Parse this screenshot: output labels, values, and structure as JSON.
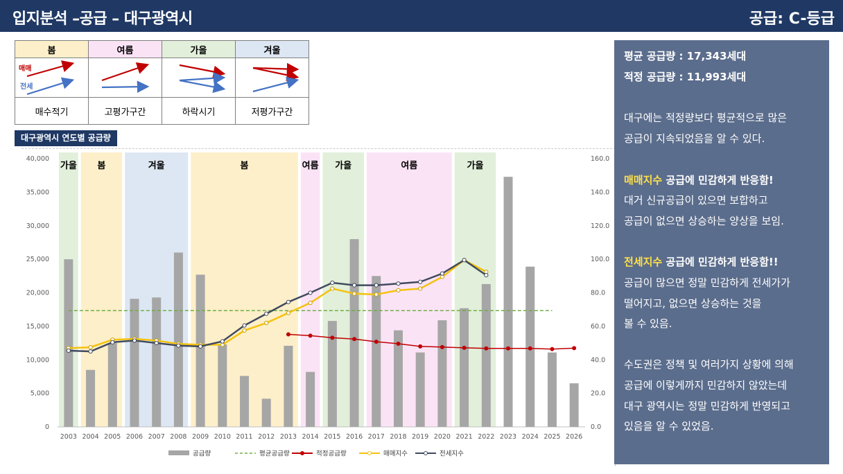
{
  "header": {
    "title": "입지분석 –공급 – 대구광역시",
    "grade": "공급: C-등급"
  },
  "season_table": {
    "seasons": [
      {
        "name": "봄",
        "color": "#fdefc9",
        "label": "매수적기"
      },
      {
        "name": "여름",
        "color": "#fbe3f6",
        "label": "고평가구간"
      },
      {
        "name": "가을",
        "color": "#e2efda",
        "label": "하락시기"
      },
      {
        "name": "겨울",
        "color": "#dde7f3",
        "label": "저평가구간"
      }
    ],
    "legend_sale": "매매",
    "legend_jeonse": "전세",
    "colors": {
      "sale": "#c00000",
      "jeonse": "#4472c4"
    }
  },
  "section_label": "대구광역시 연도별 공급량",
  "chart_data": {
    "type": "bar",
    "categories": [
      "2003",
      "2004",
      "2005",
      "2006",
      "2007",
      "2008",
      "2009",
      "2010",
      "2011",
      "2012",
      "2013",
      "2014",
      "2015",
      "2016",
      "2017",
      "2018",
      "2019",
      "2020",
      "2021",
      "2022",
      "2023",
      "2024",
      "2025",
      "2026"
    ],
    "ylim_left": [
      0,
      40000
    ],
    "yticks_left": [
      "0",
      "5,000",
      "10,000",
      "15,000",
      "20,000",
      "25,000",
      "30,000",
      "35,000",
      "40,000"
    ],
    "ylim_right": [
      0,
      160
    ],
    "yticks_right": [
      "0.0",
      "20.0",
      "40.0",
      "60.0",
      "80.0",
      "100.0",
      "120.0",
      "140.0",
      "160.0"
    ],
    "bands": [
      {
        "label": "가을",
        "color": "#e2efda",
        "from": 0,
        "to": 0
      },
      {
        "label": "봄",
        "color": "#fdefc9",
        "from": 1,
        "to": 2
      },
      {
        "label": "겨울",
        "color": "#dde7f3",
        "from": 3,
        "to": 5
      },
      {
        "label": "봄",
        "color": "#fdefc9",
        "from": 6,
        "to": 10
      },
      {
        "label": "여름",
        "color": "#fbe3f6",
        "from": 11,
        "to": 11
      },
      {
        "label": "가을",
        "color": "#e2efda",
        "from": 12,
        "to": 13
      },
      {
        "label": "여름",
        "color": "#fbe3f6",
        "from": 14,
        "to": 17
      },
      {
        "label": "가을",
        "color": "#e2efda",
        "from": 18,
        "to": 19
      }
    ],
    "series": [
      {
        "name": "공급량",
        "type": "bar",
        "axis": "left",
        "color": "#a6a6a6",
        "values": [
          25000,
          8500,
          12500,
          19100,
          19300,
          26000,
          22700,
          12300,
          7600,
          4200,
          12100,
          8200,
          15800,
          28000,
          22500,
          14400,
          11100,
          15900,
          17700,
          21300,
          37300,
          23900,
          11100,
          6500
        ]
      },
      {
        "name": "평균공급량",
        "type": "dashed",
        "axis": "left",
        "color": "#70ad47",
        "value": 17343,
        "from": 0,
        "to": 22
      },
      {
        "name": "적정공급량",
        "type": "line",
        "axis": "left",
        "color": "#c00000",
        "values": [
          null,
          null,
          null,
          null,
          null,
          null,
          null,
          null,
          null,
          null,
          13800,
          13600,
          13300,
          13100,
          12700,
          12400,
          12000,
          11900,
          11800,
          11700,
          11700,
          11700,
          11600,
          11750
        ]
      },
      {
        "name": "매매지수",
        "type": "line",
        "axis": "right",
        "color": "#f4c20d",
        "values": [
          47,
          47.5,
          52,
          52.5,
          51.5,
          49.5,
          49,
          49,
          57.5,
          62,
          68,
          74,
          82.5,
          79.5,
          79,
          81.5,
          82.5,
          89.5,
          99.5,
          92.5,
          null,
          null,
          null,
          null
        ]
      },
      {
        "name": "전세지수",
        "type": "line",
        "axis": "right",
        "color": "#404a5e",
        "values": [
          45.5,
          45,
          50.5,
          51.5,
          50,
          48.5,
          48,
          51,
          60.5,
          67.5,
          74.5,
          80,
          86,
          84.5,
          84.5,
          85.5,
          86.5,
          91.5,
          99.5,
          90.5,
          null,
          null,
          null,
          null
        ]
      }
    ]
  },
  "panel": {
    "avg_supply": "평균 공급량 : 17,343세대",
    "proper_supply": "적정 공급량 : 11,993세대",
    "p1_l1": "대구에는 적정량보다 평균적으로 많은",
    "p1_l2": "공급이 지속되었음을 알 수 있다.",
    "p2_hl": "매매지수",
    "p2_rest": " 공급에 민감하게 반응함!",
    "p2_l2": "대거 신규공급이 있으면 보합하고",
    "p2_l3": "공급이 없으면 상승하는 양상을 보임.",
    "p3_hl": "전세지수",
    "p3_rest": " 공급에 민감하게 반응함!!",
    "p3_l2": "공급이 많으면 정말 민감하게 전세가가",
    "p3_l3": "떨어지고, 없으면 상승하는 것을",
    "p3_l4": "볼 수 있음.",
    "p4_l1": " 수도권은 정책 및 여러가지 상황에 의해",
    "p4_l2": "공급에 이렇게까지 민감하지 않았는데",
    "p4_l3": "대구 광역시는 정말 민감하게 반영되고",
    "p4_l4": "있음을 알 수 있었음."
  }
}
